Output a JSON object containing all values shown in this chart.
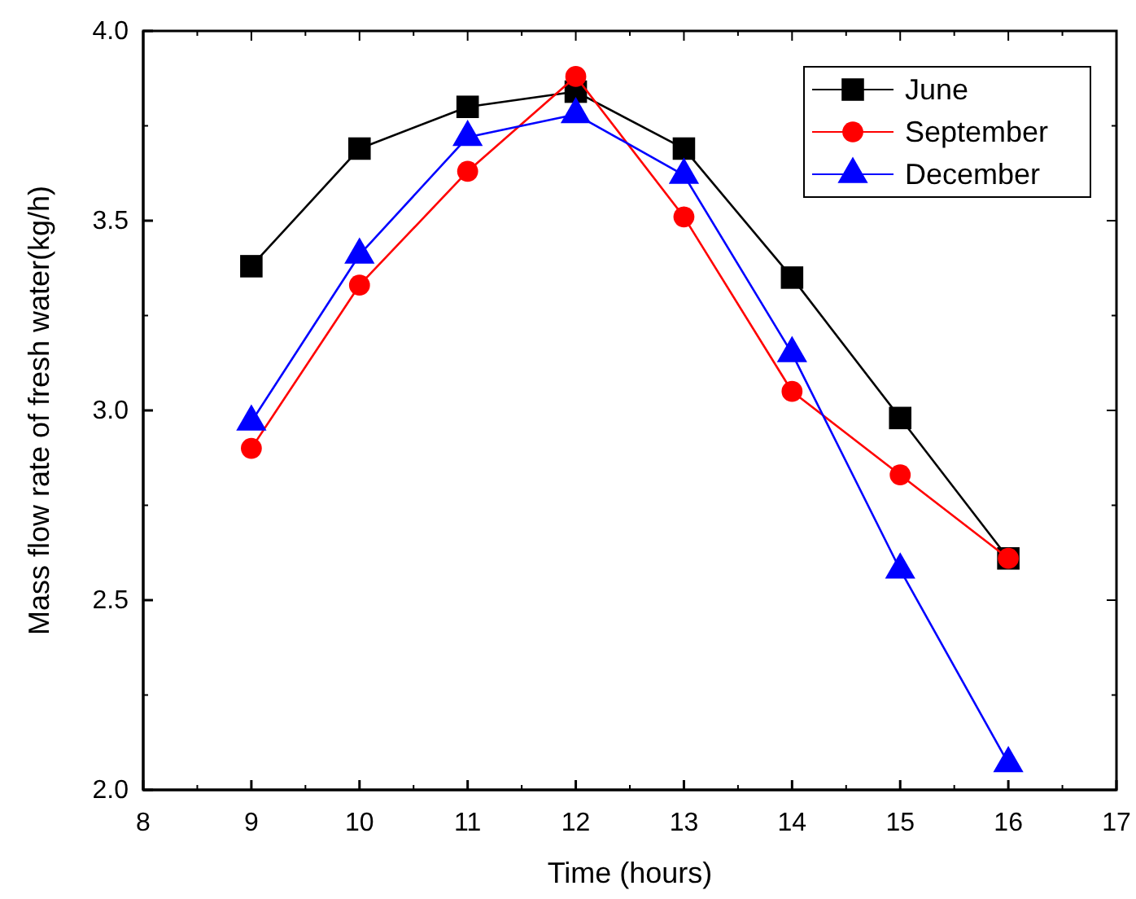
{
  "chart_data": {
    "type": "line",
    "xlabel": "Time (hours)",
    "ylabel": "Mass flow rate of fresh water(kg/h)",
    "x": [
      9,
      10,
      11,
      12,
      13,
      14,
      15,
      16
    ],
    "series": [
      {
        "name": "June",
        "color": "#000000",
        "marker": "square",
        "values": [
          3.38,
          3.69,
          3.8,
          3.84,
          3.69,
          3.35,
          2.98,
          2.61
        ]
      },
      {
        "name": "September",
        "color": "#ff0000",
        "marker": "circle",
        "values": [
          2.9,
          3.33,
          3.63,
          3.88,
          3.51,
          3.05,
          2.83,
          2.61
        ]
      },
      {
        "name": "December",
        "color": "#0000ff",
        "marker": "triangle",
        "values": [
          2.97,
          3.41,
          3.72,
          3.78,
          3.62,
          3.15,
          2.58,
          2.07
        ]
      }
    ],
    "xlim": [
      8,
      17
    ],
    "xticks": [
      8,
      9,
      10,
      11,
      12,
      13,
      14,
      15,
      16,
      17
    ],
    "ylim": [
      2.0,
      4.0
    ],
    "yticks": [
      {
        "value": 2,
        "label": "2.0"
      },
      {
        "value": 2.5,
        "label": "2.5"
      },
      {
        "value": 3,
        "label": "3.0"
      },
      {
        "value": 3.5,
        "label": "3.5"
      },
      {
        "value": 4,
        "label": "4.0"
      }
    ],
    "legend": "top right",
    "grid": false,
    "line_style": "solid"
  }
}
